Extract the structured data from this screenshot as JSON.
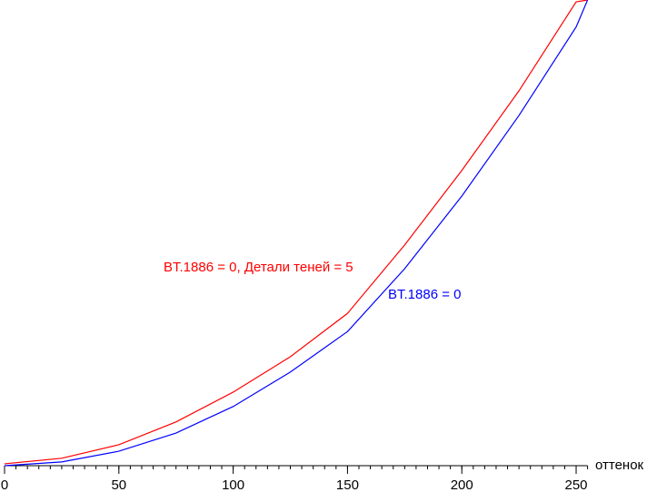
{
  "chart_data": {
    "type": "line",
    "x_label": "оттенок",
    "x": [
      0,
      25,
      50,
      75,
      100,
      125,
      150,
      175,
      200,
      225,
      250,
      255
    ],
    "series": [
      {
        "name": "BT.1886 = 0, Детали теней = 5",
        "color": "#ff0000",
        "values": [
          0.4,
          1.6,
          4.5,
          9.4,
          15.8,
          23.4,
          32.7,
          47.4,
          63.4,
          80.5,
          99.6,
          100
        ]
      },
      {
        "name": "BT.1886 = 0",
        "color": "#0000ff",
        "values": [
          0,
          0.8,
          3.1,
          7.0,
          12.7,
          20.1,
          28.8,
          42.3,
          57.9,
          75.2,
          94.2,
          100
        ]
      }
    ],
    "xlim": [
      0,
      255
    ],
    "ylim": [
      0,
      100
    ],
    "xticks": [
      0,
      50,
      100,
      150,
      200,
      250
    ],
    "xminorticks": [
      0,
      5,
      10,
      15,
      20,
      25,
      30,
      35,
      40,
      45,
      50,
      55,
      60,
      65,
      70,
      75,
      80,
      85,
      90,
      95,
      100,
      105,
      110,
      115,
      120,
      125,
      130,
      135,
      140,
      145,
      150,
      155,
      160,
      165,
      170,
      175,
      180,
      185,
      190,
      195,
      200,
      205,
      210,
      215,
      220,
      225,
      230,
      235,
      240,
      245,
      250,
      255
    ]
  }
}
